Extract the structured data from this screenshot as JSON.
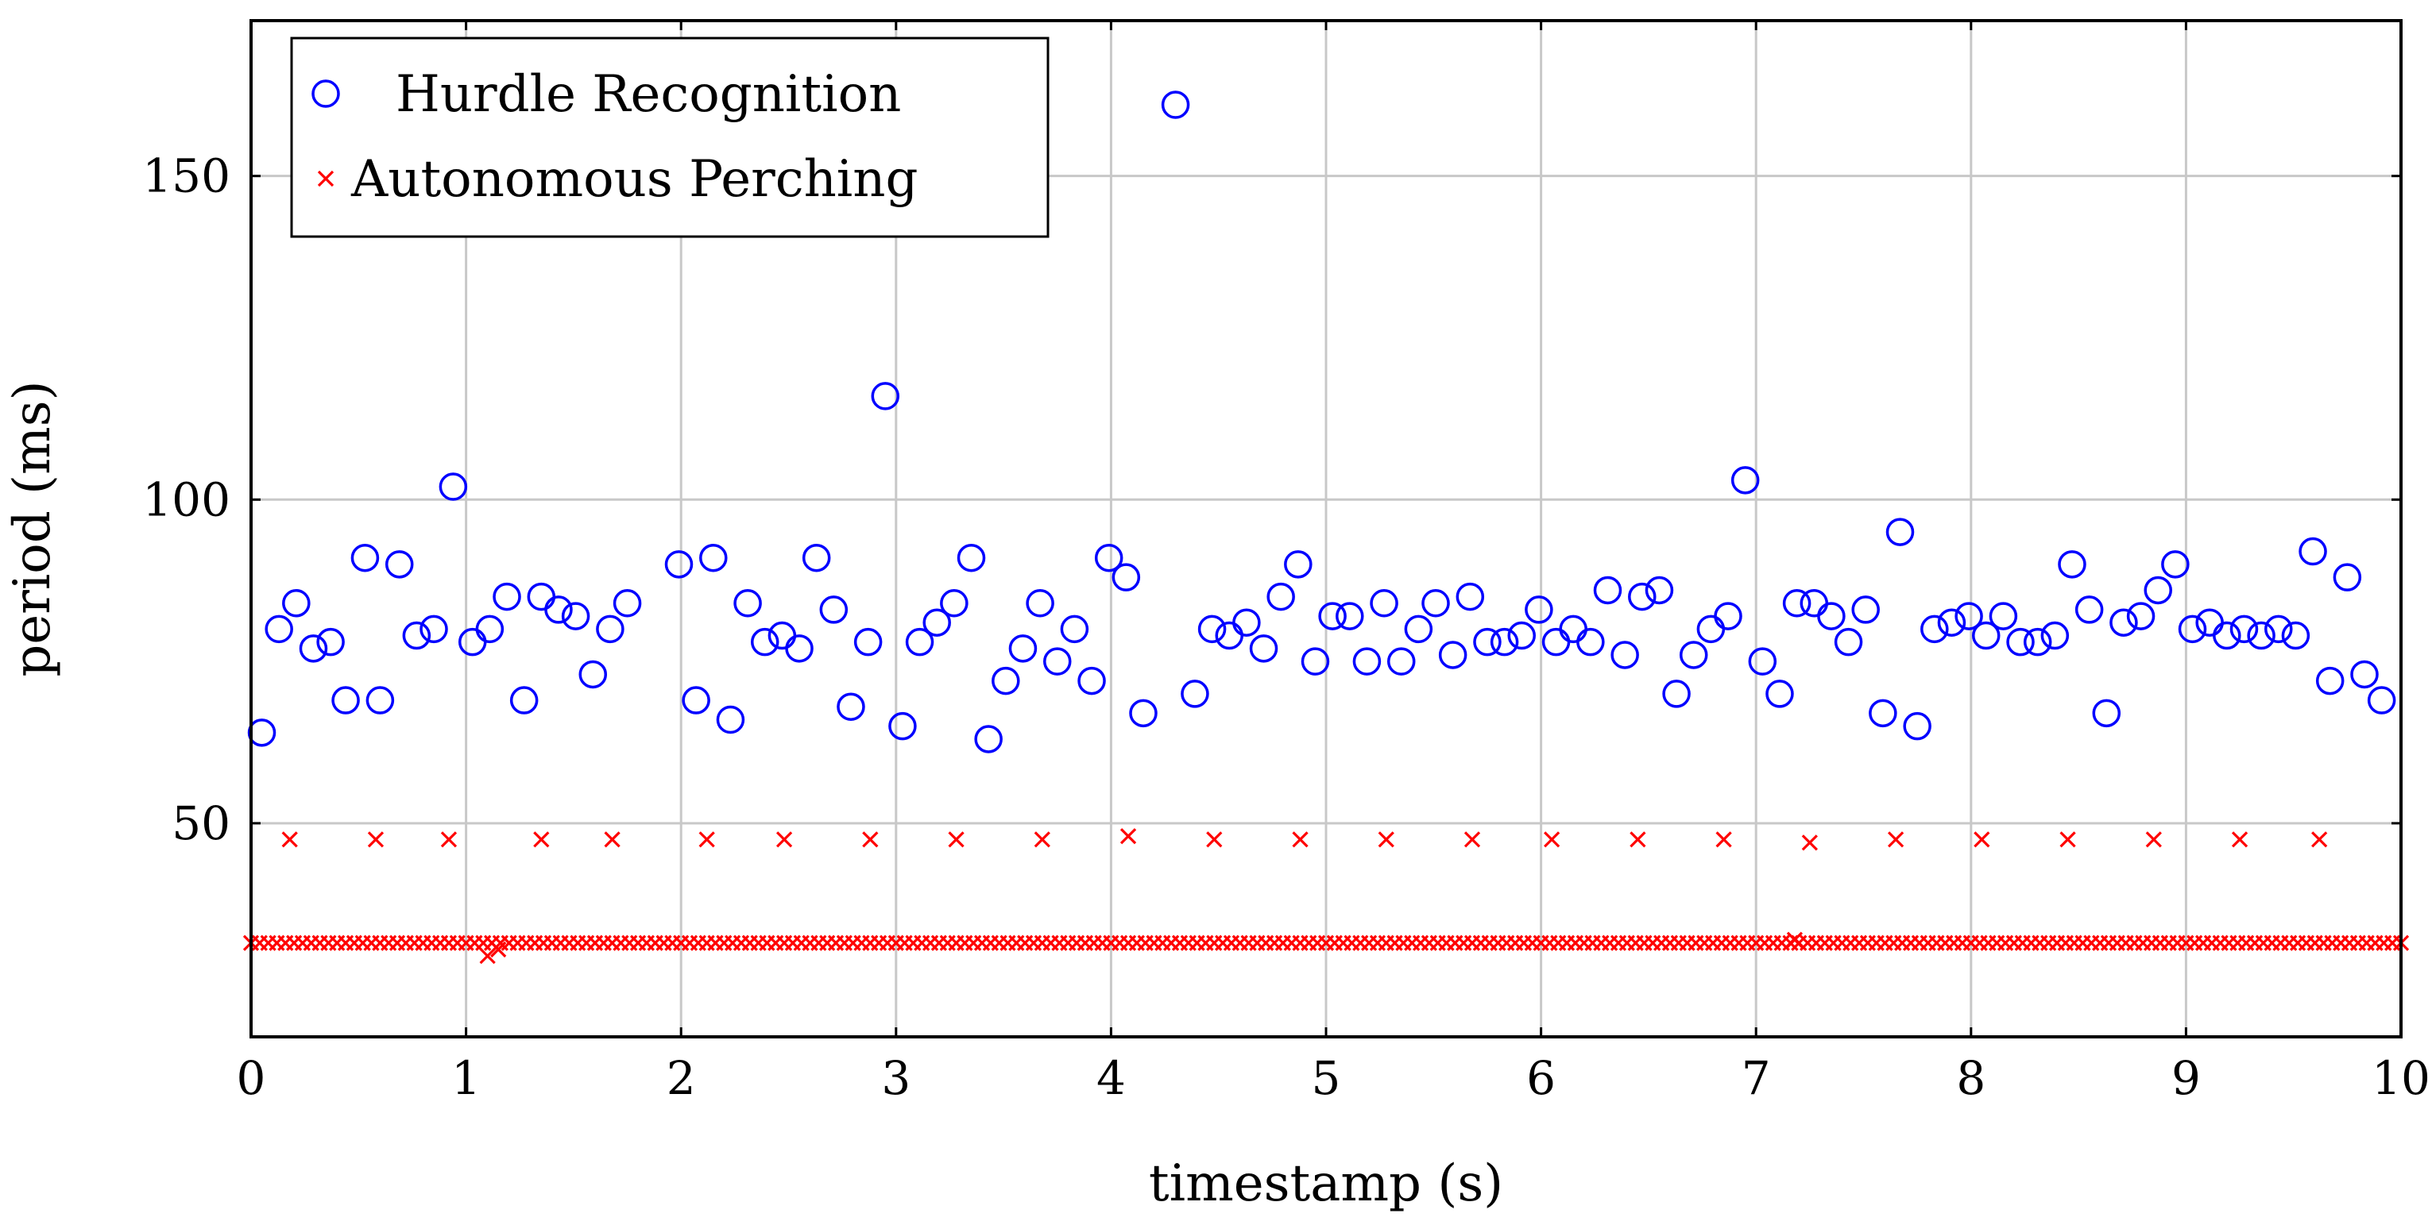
{
  "chart_data": {
    "type": "scatter",
    "title": "",
    "xlabel": "timestamp (s)",
    "ylabel": "period (ms)",
    "xlim": [
      0,
      10
    ],
    "ylim": [
      17,
      174
    ],
    "x_ticks": [
      0,
      1,
      2,
      3,
      4,
      5,
      6,
      7,
      8,
      9,
      10
    ],
    "y_ticks": [
      50,
      100,
      150
    ],
    "grid": true,
    "legend_position": "top-left",
    "series": [
      {
        "name": "Hurdle Recognition",
        "marker": "circle",
        "color": "#0000ff",
        "x": [
          0.05,
          0.13,
          0.21,
          0.29,
          0.37,
          0.44,
          0.53,
          0.6,
          0.69,
          0.77,
          0.85,
          0.94,
          1.03,
          1.11,
          1.19,
          1.27,
          1.35,
          1.43,
          1.51,
          1.59,
          1.67,
          1.75,
          1.99,
          2.07,
          2.15,
          2.23,
          2.31,
          2.39,
          2.47,
          2.55,
          2.63,
          2.71,
          2.79,
          2.87,
          2.95,
          3.03,
          3.11,
          3.19,
          3.27,
          3.35,
          3.43,
          3.51,
          3.59,
          3.67,
          3.75,
          3.83,
          3.91,
          3.99,
          4.07,
          4.15,
          4.3,
          4.39,
          4.47,
          4.55,
          4.63,
          4.71,
          4.79,
          4.87,
          4.95,
          5.03,
          5.11,
          5.19,
          5.27,
          5.35,
          5.43,
          5.51,
          5.59,
          5.67,
          5.75,
          5.83,
          5.91,
          5.99,
          6.07,
          6.15,
          6.23,
          6.31,
          6.39,
          6.47,
          6.55,
          6.63,
          6.71,
          6.79,
          6.87,
          6.95,
          7.03,
          7.11,
          7.19,
          7.27,
          7.35,
          7.43,
          7.51,
          7.59,
          7.67,
          7.75,
          7.83,
          7.91,
          7.99,
          8.07,
          8.15,
          8.23,
          8.31,
          8.39,
          8.47,
          8.55,
          8.63,
          8.71,
          8.79,
          8.87,
          8.95,
          9.03,
          9.11,
          9.19,
          9.27,
          9.35,
          9.43,
          9.51,
          9.59,
          9.67,
          9.75,
          9.83,
          9.91
        ],
        "y": [
          64,
          80,
          84,
          77,
          78,
          69,
          91,
          69,
          90,
          79,
          80,
          102,
          78,
          80,
          85,
          69,
          85,
          83,
          82,
          73,
          80,
          84,
          90,
          69,
          91,
          66,
          84,
          78,
          79,
          77,
          91,
          83,
          68,
          78,
          116,
          65,
          78,
          81,
          84,
          91,
          63,
          72,
          77,
          84,
          75,
          80,
          72,
          91,
          88,
          67,
          161,
          70,
          80,
          79,
          81,
          77,
          85,
          90,
          75,
          82,
          82,
          75,
          84,
          75,
          80,
          84,
          76,
          85,
          78,
          78,
          79,
          83,
          78,
          80,
          78,
          86,
          76,
          85,
          86,
          70,
          76,
          80,
          82,
          103,
          75,
          70,
          84,
          84,
          82,
          78,
          83,
          67,
          95,
          65,
          80,
          81,
          82,
          79,
          82,
          78,
          78,
          79,
          90,
          83,
          67,
          81,
          82,
          86,
          90,
          80,
          81,
          79,
          80,
          79,
          80,
          79,
          92,
          72,
          88,
          73,
          69
        ]
      },
      {
        "name": "Autonomous Perching",
        "marker": "x",
        "color": "#ff0000",
        "x": [
          0.18,
          0.58,
          0.92,
          1.35,
          1.68,
          2.12,
          2.48,
          2.88,
          3.28,
          3.68,
          4.08,
          4.48,
          4.88,
          5.28,
          5.68,
          6.05,
          6.45,
          6.85,
          7.25,
          7.65,
          8.05,
          8.45,
          8.85,
          9.25,
          9.62,
          1.1,
          1.15,
          7.18
        ],
        "y": [
          47.5,
          47.5,
          47.5,
          47.5,
          47.5,
          47.5,
          47.5,
          47.5,
          47.5,
          47.5,
          48,
          47.5,
          47.5,
          47.5,
          47.5,
          47.5,
          47.5,
          47.5,
          47,
          47.5,
          47.5,
          47.5,
          47.5,
          47.5,
          47.5,
          29.5,
          30.5,
          32
        ],
        "dense_band": {
          "x_start": 0.0,
          "x_end": 10.0,
          "x_step": 0.04,
          "y": 31.5
        }
      }
    ]
  }
}
